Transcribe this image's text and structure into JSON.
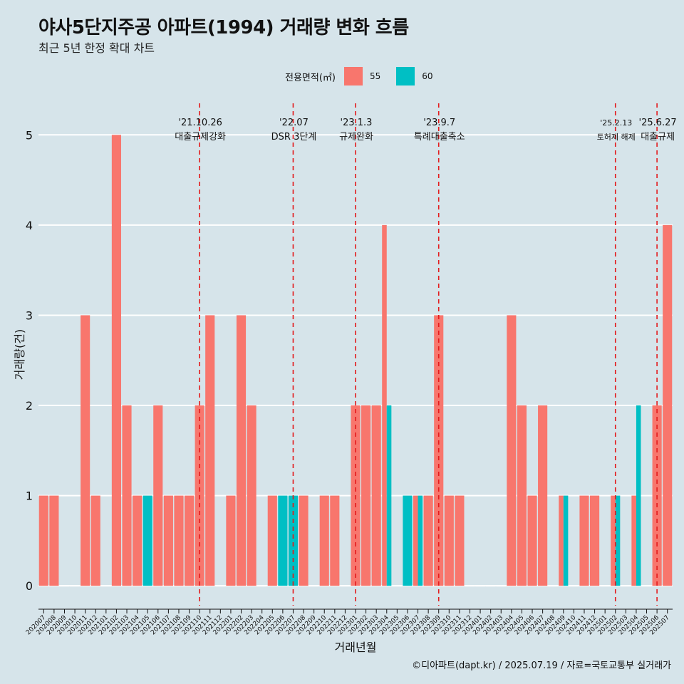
{
  "title": "야사5단지주공 아파트(1994) 거래량 변화 흐름",
  "subtitle": "최근 5년 한정 확대 차트",
  "caption": "©디아파트(dapt.kr) / 2025.07.19 / 자료=국토교통부 실거래가",
  "colors": {
    "background": "#d6e4ea",
    "s55": "#f8766d",
    "s60": "#00bfc4",
    "event": "#e31a1c",
    "grid": "#ffffff"
  },
  "chart_data": {
    "type": "bar",
    "title": "야사5단지주공 아파트(1994) 거래량 변화 흐름",
    "xlabel": "거래년월",
    "ylabel": "거래량(건)",
    "ylim": [
      -0.22,
      5.35
    ],
    "yticks": [
      0,
      1,
      2,
      3,
      4,
      5
    ],
    "legend": {
      "title": "전용면적(㎡)",
      "position": "top",
      "entries": [
        "55",
        "60"
      ]
    },
    "categories": [
      "202007",
      "202008",
      "202009",
      "202010",
      "202011",
      "202012",
      "202101",
      "202102",
      "202103",
      "202104",
      "202105",
      "202106",
      "202107",
      "202108",
      "202109",
      "202110",
      "202111",
      "202112",
      "202201",
      "202202",
      "202203",
      "202204",
      "202205",
      "202206",
      "202207",
      "202208",
      "202209",
      "202210",
      "202211",
      "202212",
      "202301",
      "202302",
      "202303",
      "202304",
      "202305",
      "202306",
      "202307",
      "202308",
      "202309",
      "202310",
      "202311",
      "202312",
      "202401",
      "202402",
      "202403",
      "202404",
      "202405",
      "202406",
      "202407",
      "202408",
      "202409",
      "202410",
      "202411",
      "202412",
      "202501",
      "202502",
      "202503",
      "202504",
      "202505",
      "202506",
      "202507"
    ],
    "series": [
      {
        "name": "55",
        "values": [
          1,
          1,
          0,
          0,
          3,
          1,
          0,
          5,
          2,
          1,
          0,
          2,
          1,
          1,
          1,
          2,
          3,
          0,
          1,
          3,
          2,
          0,
          1,
          0,
          0,
          1,
          0,
          1,
          1,
          0,
          2,
          2,
          2,
          4,
          0,
          0,
          1,
          1,
          3,
          1,
          1,
          0,
          0,
          0,
          0,
          3,
          2,
          1,
          2,
          0,
          1,
          0,
          1,
          1,
          0,
          1,
          0,
          1,
          0,
          2,
          4
        ]
      },
      {
        "name": "60",
        "values": [
          0,
          0,
          0,
          0,
          0,
          0,
          0,
          0,
          0,
          0,
          1,
          0,
          0,
          0,
          0,
          0,
          0,
          0,
          0,
          0,
          0,
          0,
          0,
          1,
          1,
          0,
          0,
          0,
          0,
          0,
          0,
          0,
          0,
          2,
          0,
          1,
          1,
          0,
          0,
          0,
          0,
          0,
          0,
          0,
          0,
          0,
          0,
          0,
          0,
          0,
          1,
          0,
          0,
          0,
          0,
          1,
          0,
          2,
          0,
          0,
          0
        ]
      }
    ],
    "events": [
      {
        "x": "202110",
        "date": "'21.10.26",
        "label": "대출규제강화"
      },
      {
        "x": "202207",
        "date": "'22.07",
        "label": "DSR 3단계"
      },
      {
        "x": "202301",
        "date": "'23.1.3",
        "label": "규제완화"
      },
      {
        "x": "202309",
        "date": "'23.9.7",
        "label": "특례대출축소"
      },
      {
        "x": "202502",
        "date": "'25.2.13",
        "label": "토허제 해제"
      },
      {
        "x": "202506",
        "date": "'25.6.27",
        "label": "대출규제"
      }
    ]
  }
}
